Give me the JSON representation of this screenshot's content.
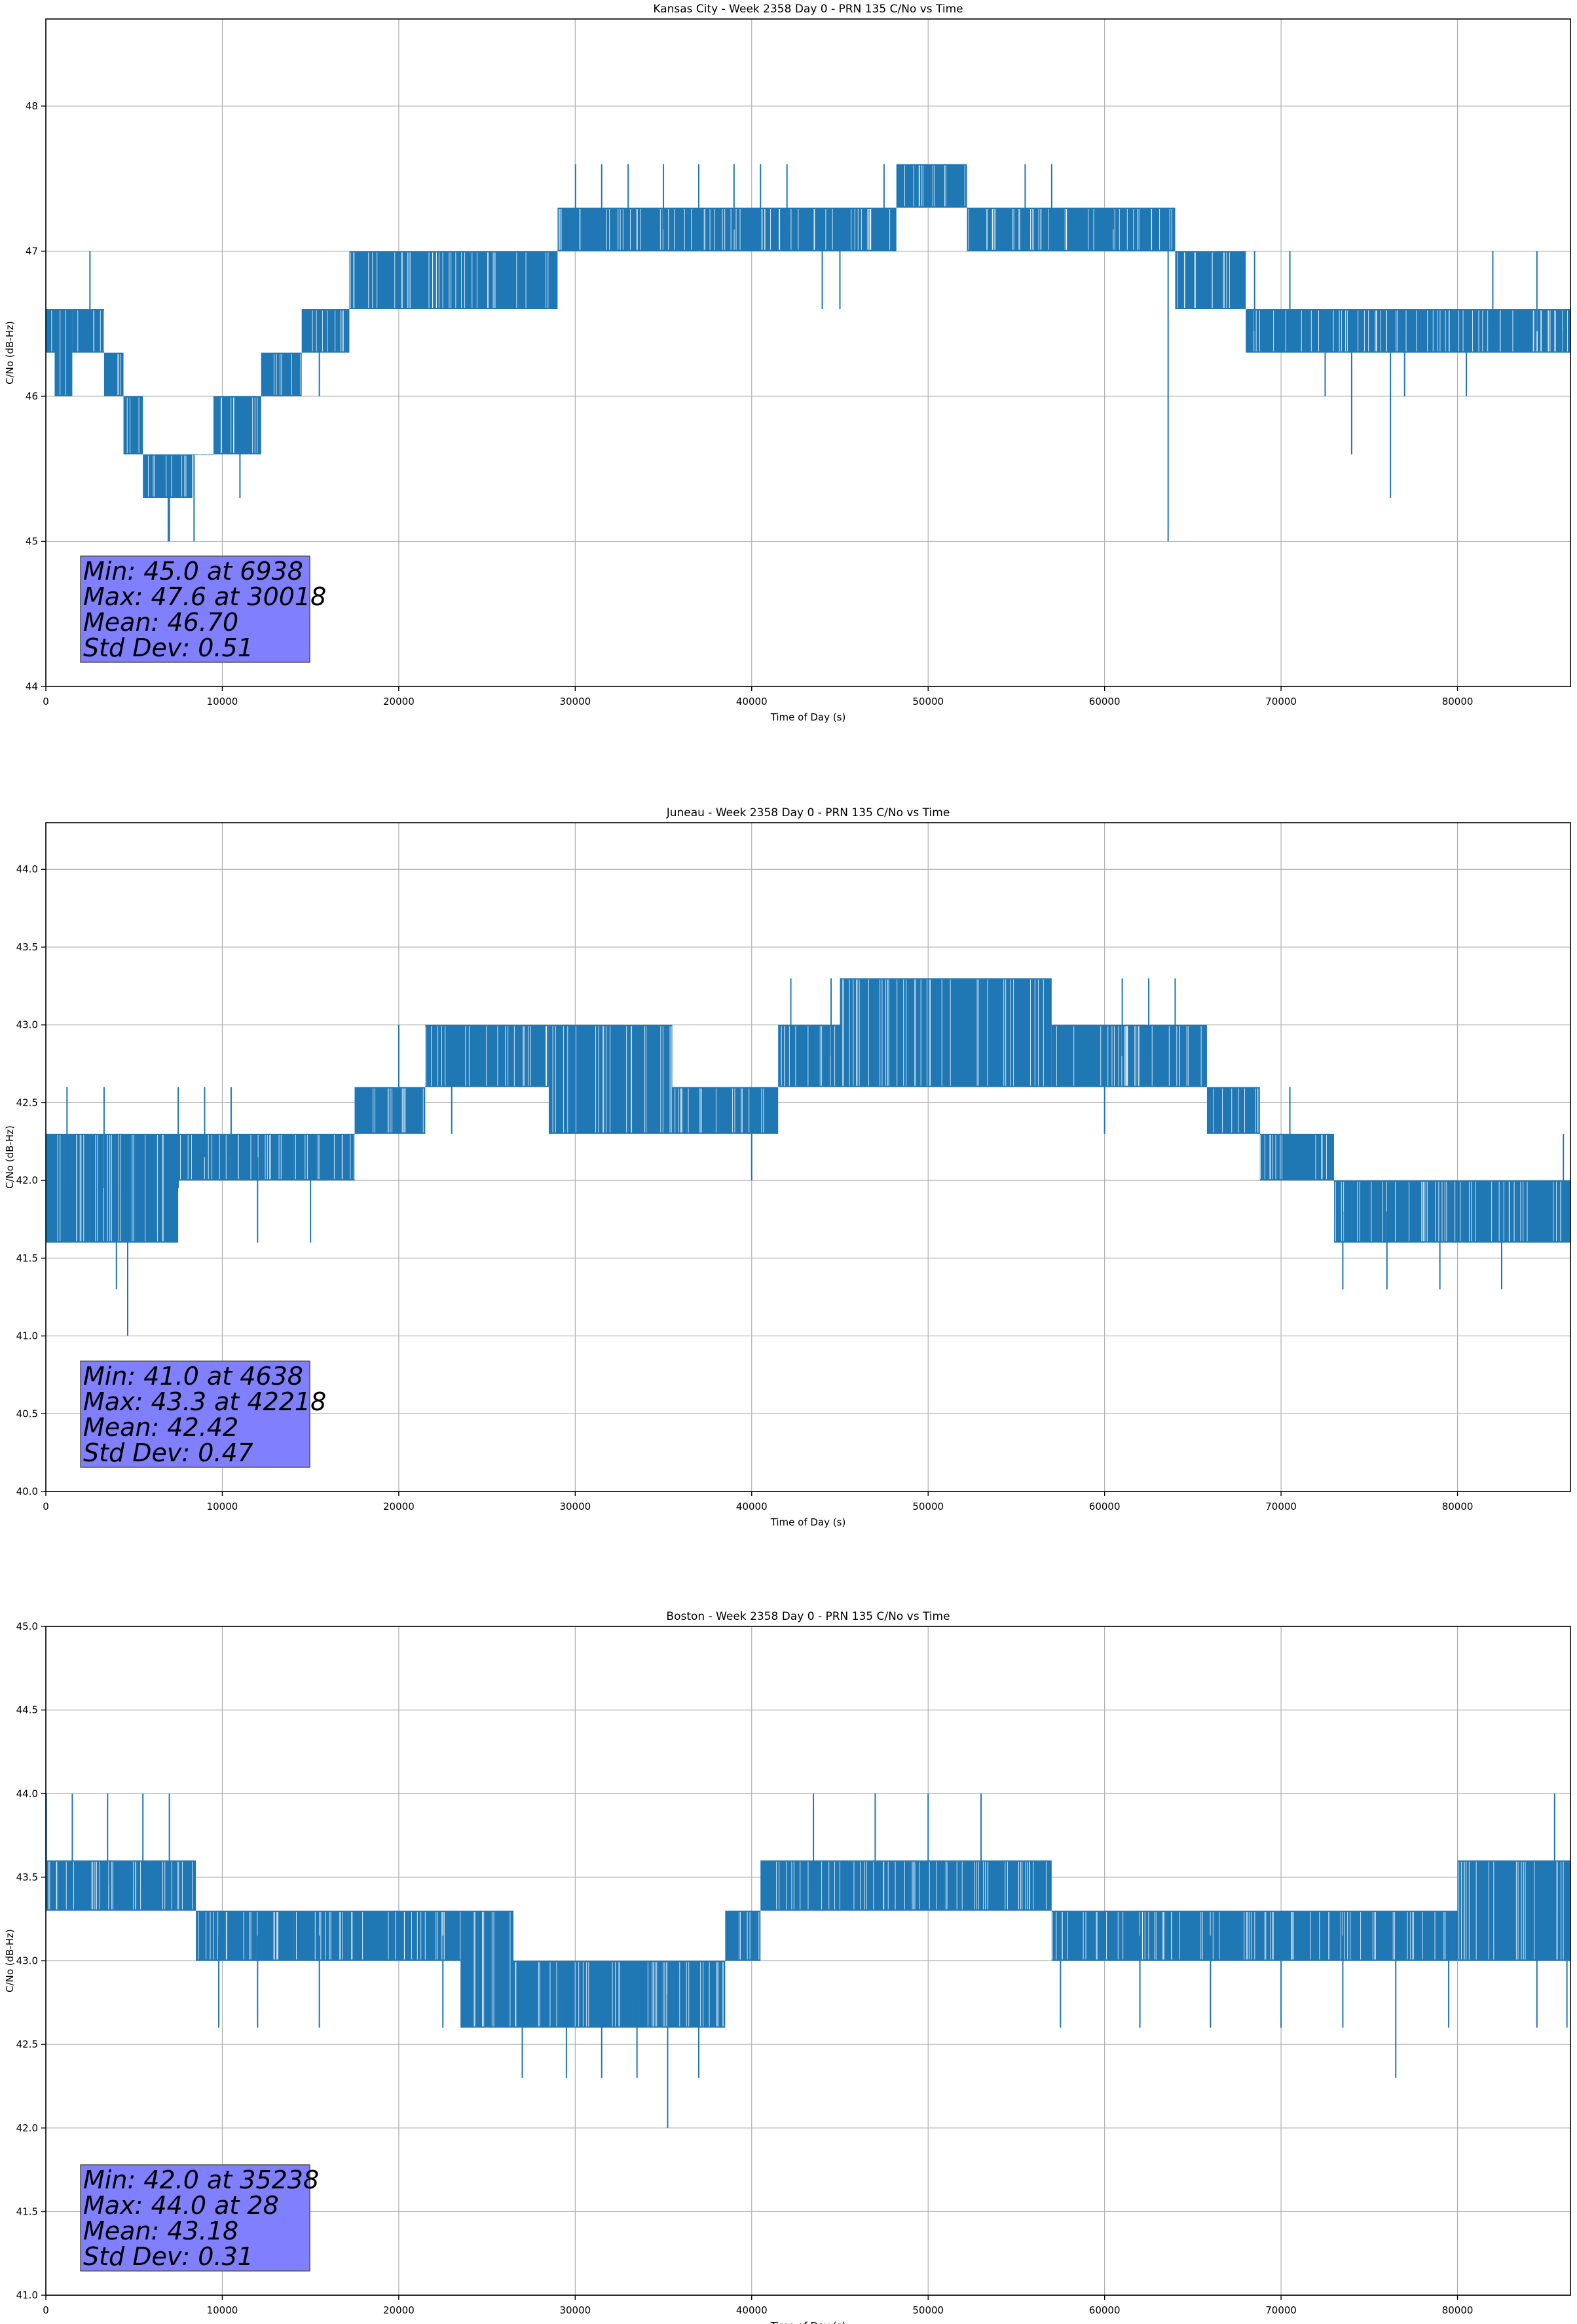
{
  "colors": {
    "series": "#1f77b4",
    "grid": "#b0b0b0",
    "axis": "#000000",
    "stats_box_fill": "#8080ff",
    "stats_box_edge": "#555555",
    "stats_text": "#000000"
  },
  "chart_data": [
    {
      "type": "line",
      "title": "Kansas City - Week 2358 Day 0 - PRN 135 C/No vs Time",
      "xlabel": "Time of Day (s)",
      "ylabel": "C/No (dB-Hz)",
      "xlim": [
        0,
        86400
      ],
      "ylim": [
        44.0,
        48.6
      ],
      "x_ticks": [
        0,
        10000,
        20000,
        30000,
        40000,
        50000,
        60000,
        70000,
        80000
      ],
      "x_tick_labels": [
        "0",
        "10000",
        "20000",
        "30000",
        "40000",
        "50000",
        "60000",
        "70000",
        "80000"
      ],
      "y_ticks": [
        44,
        45,
        46,
        47,
        48
      ],
      "y_tick_labels": [
        "44",
        "45",
        "46",
        "47",
        "48"
      ],
      "grid": true,
      "bands": [
        [
          0,
          500,
          46.3,
          46.6
        ],
        [
          500,
          1500,
          46.0,
          46.6
        ],
        [
          1500,
          3300,
          46.3,
          46.6
        ],
        [
          3300,
          4400,
          46.0,
          46.3
        ],
        [
          4400,
          5500,
          45.6,
          46.0
        ],
        [
          5500,
          8300,
          45.3,
          45.6
        ],
        [
          8300,
          9500,
          45.6,
          45.6
        ],
        [
          9500,
          12200,
          45.6,
          46.0
        ],
        [
          12200,
          14500,
          46.0,
          46.3
        ],
        [
          14500,
          17200,
          46.3,
          46.6
        ],
        [
          17200,
          29000,
          46.6,
          47.0
        ],
        [
          29000,
          43600,
          47.0,
          47.3
        ],
        [
          43600,
          48200,
          47.0,
          47.3
        ],
        [
          48200,
          52200,
          47.3,
          47.6
        ],
        [
          52200,
          64000,
          47.0,
          47.3
        ],
        [
          64000,
          68000,
          46.6,
          47.0
        ],
        [
          68000,
          86400,
          46.3,
          46.6
        ]
      ],
      "spikes": [
        [
          7000,
          45.0
        ],
        [
          6938,
          45.0
        ],
        [
          8400,
          45.0
        ],
        [
          2500,
          47.0
        ],
        [
          3800,
          46.0
        ],
        [
          15500,
          46.0
        ],
        [
          11000,
          45.3
        ],
        [
          30018,
          47.6
        ],
        [
          31500,
          47.6
        ],
        [
          33000,
          47.6
        ],
        [
          35000,
          47.6
        ],
        [
          37000,
          47.6
        ],
        [
          39000,
          47.6
        ],
        [
          40500,
          47.6
        ],
        [
          42000,
          47.6
        ],
        [
          44000,
          46.6
        ],
        [
          45000,
          46.6
        ],
        [
          47500,
          47.6
        ],
        [
          55500,
          47.6
        ],
        [
          57000,
          47.6
        ],
        [
          58500,
          47.3
        ],
        [
          60500,
          47.3
        ],
        [
          63600,
          45.0
        ],
        [
          66000,
          46.6
        ],
        [
          68500,
          47.0
        ],
        [
          70500,
          47.0
        ],
        [
          72500,
          46.0
        ],
        [
          74000,
          45.6
        ],
        [
          76200,
          45.3
        ],
        [
          77000,
          46.0
        ],
        [
          80500,
          46.0
        ],
        [
          82000,
          47.0
        ],
        [
          84500,
          47.0
        ],
        [
          86000,
          46.3
        ]
      ],
      "stats": [
        "Min: 45.0 at 6938",
        "Max: 47.6 at 30018",
        "Mean: 46.70",
        "Std Dev: 0.51"
      ]
    },
    {
      "type": "line",
      "title": "Juneau - Week 2358 Day 0 - PRN 135 C/No vs Time",
      "xlabel": "Time of Day (s)",
      "ylabel": "C/No (dB-Hz)",
      "xlim": [
        0,
        86400
      ],
      "ylim": [
        40.0,
        44.3
      ],
      "x_ticks": [
        0,
        10000,
        20000,
        30000,
        40000,
        50000,
        60000,
        70000,
        80000
      ],
      "x_tick_labels": [
        "0",
        "10000",
        "20000",
        "30000",
        "40000",
        "50000",
        "60000",
        "70000",
        "80000"
      ],
      "y_ticks": [
        40.0,
        40.5,
        41.0,
        41.5,
        42.0,
        42.5,
        43.0,
        43.5,
        44.0
      ],
      "y_tick_labels": [
        "40.0",
        "40.5",
        "41.0",
        "41.5",
        "42.0",
        "42.5",
        "43.0",
        "43.5",
        "44.0"
      ],
      "grid": true,
      "bands": [
        [
          0,
          2500,
          41.6,
          42.3
        ],
        [
          2500,
          7500,
          41.6,
          42.3
        ],
        [
          7500,
          10500,
          42.0,
          42.3
        ],
        [
          10500,
          14000,
          42.0,
          42.3
        ],
        [
          14000,
          17500,
          42.0,
          42.3
        ],
        [
          17500,
          21500,
          42.3,
          42.6
        ],
        [
          21500,
          28500,
          42.6,
          43.0
        ],
        [
          28500,
          35500,
          42.3,
          43.0
        ],
        [
          35500,
          41500,
          42.3,
          42.6
        ],
        [
          41500,
          45000,
          42.6,
          43.0
        ],
        [
          45000,
          57000,
          42.6,
          43.3
        ],
        [
          57000,
          65800,
          42.6,
          43.0
        ],
        [
          65800,
          68800,
          42.3,
          42.6
        ],
        [
          68800,
          73000,
          42.0,
          42.3
        ],
        [
          73000,
          86400,
          41.6,
          42.0
        ]
      ],
      "spikes": [
        [
          4638,
          41.0
        ],
        [
          4000,
          41.3
        ],
        [
          1200,
          42.6
        ],
        [
          3300,
          42.6
        ],
        [
          7500,
          42.6
        ],
        [
          9000,
          42.6
        ],
        [
          10500,
          42.6
        ],
        [
          12000,
          41.6
        ],
        [
          15000,
          41.6
        ],
        [
          20000,
          43.0
        ],
        [
          23000,
          42.3
        ],
        [
          40000,
          42.0
        ],
        [
          42218,
          43.3
        ],
        [
          44500,
          43.3
        ],
        [
          61000,
          43.3
        ],
        [
          62500,
          43.3
        ],
        [
          64000,
          43.3
        ],
        [
          60000,
          42.3
        ],
        [
          70500,
          42.6
        ],
        [
          73500,
          41.3
        ],
        [
          76000,
          41.3
        ],
        [
          79000,
          41.3
        ],
        [
          82500,
          41.3
        ],
        [
          86000,
          42.3
        ]
      ],
      "stats": [
        "Min: 41.0 at 4638",
        "Max: 43.3 at 42218",
        "Mean: 42.42",
        "Std Dev: 0.47"
      ]
    },
    {
      "type": "line",
      "title": "Boston - Week 2358 Day 0 - PRN 135 C/No vs Time",
      "xlabel": "Time of Day (s)",
      "ylabel": "C/No (dB-Hz)",
      "xlim": [
        0,
        86400
      ],
      "ylim": [
        41.0,
        45.0
      ],
      "x_ticks": [
        0,
        10000,
        20000,
        30000,
        40000,
        50000,
        60000,
        70000,
        80000
      ],
      "x_tick_labels": [
        "0",
        "10000",
        "20000",
        "30000",
        "40000",
        "50000",
        "60000",
        "70000",
        "80000"
      ],
      "y_ticks": [
        41.0,
        41.5,
        42.0,
        42.5,
        43.0,
        43.5,
        44.0,
        44.5,
        45.0
      ],
      "y_tick_labels": [
        "41.0",
        "41.5",
        "42.0",
        "42.5",
        "43.0",
        "43.5",
        "44.0",
        "44.5",
        "45.0"
      ],
      "grid": true,
      "bands": [
        [
          0,
          8500,
          43.3,
          43.6
        ],
        [
          8500,
          14000,
          43.0,
          43.3
        ],
        [
          14000,
          23500,
          43.0,
          43.3
        ],
        [
          23500,
          26500,
          42.6,
          43.3
        ],
        [
          26500,
          38500,
          42.6,
          43.0
        ],
        [
          38500,
          40500,
          43.0,
          43.3
        ],
        [
          40500,
          57000,
          43.3,
          43.6
        ],
        [
          57000,
          80000,
          43.0,
          43.3
        ],
        [
          80000,
          86400,
          43.0,
          43.6
        ]
      ],
      "spikes": [
        [
          28,
          44.0
        ],
        [
          1500,
          44.0
        ],
        [
          3500,
          44.0
        ],
        [
          5500,
          44.0
        ],
        [
          7000,
          44.0
        ],
        [
          9800,
          42.6
        ],
        [
          12000,
          42.6
        ],
        [
          15500,
          42.6
        ],
        [
          22500,
          42.6
        ],
        [
          27000,
          42.3
        ],
        [
          29500,
          42.3
        ],
        [
          31500,
          42.3
        ],
        [
          33500,
          42.3
        ],
        [
          35238,
          42.0
        ],
        [
          37000,
          42.3
        ],
        [
          43500,
          44.0
        ],
        [
          47000,
          44.0
        ],
        [
          50000,
          44.0
        ],
        [
          53000,
          44.0
        ],
        [
          57500,
          42.6
        ],
        [
          62000,
          42.6
        ],
        [
          66000,
          42.6
        ],
        [
          70000,
          42.6
        ],
        [
          73500,
          42.6
        ],
        [
          76500,
          42.3
        ],
        [
          79500,
          42.6
        ],
        [
          84500,
          42.6
        ],
        [
          85500,
          44.0
        ],
        [
          86200,
          42.6
        ]
      ],
      "stats": [
        "Min: 42.0 at 35238",
        "Max: 44.0 at 28",
        "Mean: 43.18",
        "Std Dev: 0.31"
      ]
    }
  ]
}
